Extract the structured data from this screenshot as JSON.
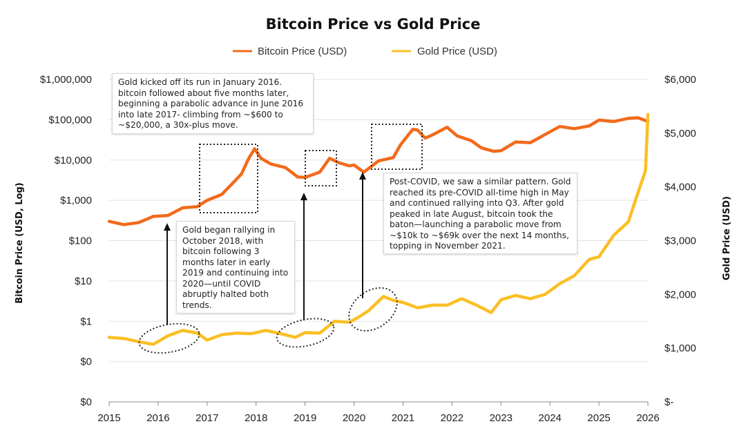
{
  "chart_data": {
    "type": "line",
    "title": "Bitcoin Price vs Gold Price",
    "xlabel": "",
    "ylabel_left": "Bitcoin Price (USD, Log)",
    "ylabel_right": "Gold Price (USD)",
    "x_ticks": [
      "2015",
      "2016",
      "2017",
      "2018",
      "2019",
      "2020",
      "2021",
      "2022",
      "2023",
      "2024",
      "2025",
      "2026"
    ],
    "x_range": [
      2015,
      2026
    ],
    "y_left_ticks": [
      "$1,000,000",
      "$100,000",
      "$10,000",
      "$1,000",
      "$100",
      "$10",
      "$1",
      "$0",
      "$0"
    ],
    "y_left_scale": "log",
    "y_right_ticks": [
      "$6,000",
      "$5,000",
      "$4,000",
      "$3,000",
      "$2,000",
      "$1,000",
      "$-"
    ],
    "y_right_range": [
      0,
      6000
    ],
    "grid": "horizontal",
    "legend_placement": "top-center",
    "series": [
      {
        "name": "Bitcoin Price (USD)",
        "axis": "left",
        "color": "#f26a1b",
        "x": [
          2015.0,
          2015.3,
          2015.6,
          2015.9,
          2016.2,
          2016.5,
          2016.8,
          2017.0,
          2017.3,
          2017.5,
          2017.7,
          2017.85,
          2017.97,
          2018.1,
          2018.3,
          2018.6,
          2018.85,
          2019.0,
          2019.3,
          2019.5,
          2019.7,
          2019.9,
          2020.0,
          2020.2,
          2020.5,
          2020.8,
          2020.95,
          2021.2,
          2021.3,
          2021.45,
          2021.6,
          2021.9,
          2022.1,
          2022.4,
          2022.6,
          2022.85,
          2023.0,
          2023.3,
          2023.6,
          2023.9,
          2024.2,
          2024.5,
          2024.8,
          2025.0,
          2025.3,
          2025.6,
          2025.8,
          2026.0
        ],
        "values": [
          300,
          250,
          280,
          400,
          420,
          650,
          700,
          1000,
          1400,
          2500,
          4500,
          11000,
          19000,
          11000,
          8000,
          6500,
          3800,
          3700,
          5000,
          11000,
          8500,
          7200,
          7500,
          5000,
          9500,
          11500,
          24000,
          58000,
          55000,
          35000,
          42000,
          65000,
          40000,
          30000,
          20000,
          16500,
          17000,
          28000,
          27000,
          43000,
          68000,
          60000,
          70000,
          98000,
          90000,
          108000,
          112000,
          90000
        ]
      },
      {
        "name": "Gold Price (USD)",
        "axis": "right",
        "color": "#fbbf24",
        "x": [
          2015.0,
          2015.3,
          2015.6,
          2015.9,
          2016.2,
          2016.5,
          2016.8,
          2017.0,
          2017.3,
          2017.6,
          2017.9,
          2018.2,
          2018.5,
          2018.8,
          2019.0,
          2019.3,
          2019.6,
          2019.9,
          2020.1,
          2020.3,
          2020.6,
          2020.8,
          2021.0,
          2021.3,
          2021.6,
          2021.9,
          2022.2,
          2022.5,
          2022.8,
          2023.0,
          2023.3,
          2023.6,
          2023.9,
          2024.2,
          2024.5,
          2024.8,
          2025.0,
          2025.3,
          2025.6,
          2025.8,
          2025.95,
          2026.0
        ],
        "values": [
          1200,
          1180,
          1120,
          1070,
          1230,
          1330,
          1280,
          1150,
          1250,
          1280,
          1270,
          1330,
          1270,
          1200,
          1290,
          1280,
          1500,
          1480,
          1580,
          1700,
          1960,
          1890,
          1850,
          1750,
          1800,
          1800,
          1920,
          1800,
          1660,
          1900,
          1980,
          1920,
          2000,
          2200,
          2350,
          2650,
          2700,
          3100,
          3350,
          3900,
          4300,
          5350
        ]
      }
    ],
    "annotations": [
      "Gold kicked off its run in January 2016. bitcoin followed about five months later, beginning a parabolic advance in June 2016 into late 2017- climbing from ~$600 to ~$20,000, a 30x-plus move.",
      "Gold began rallying in October 2018, with bitcoin following  3 months later in early 2019 and continuing into 2020—until COVID abruptly halted both trends.",
      "Post-COVID, we saw a similar pattern. Gold reached its pre-COVID all-time high in May and continued rallying into Q3. After gold peaked in late August, bitcoin took the baton—launching a parabolic move from ~$10k to ~$69k over the next 14 months, topping in November 2021."
    ]
  }
}
